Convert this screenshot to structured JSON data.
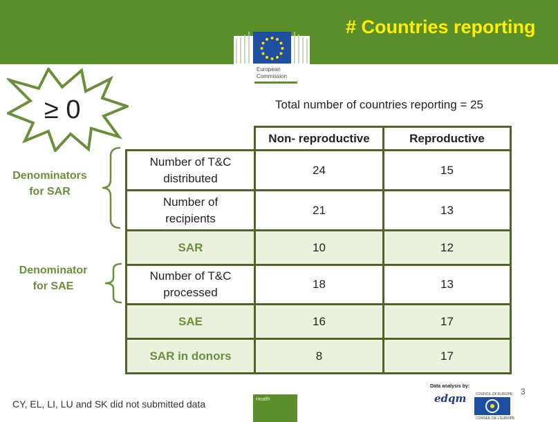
{
  "header": {
    "title": "# Countries reporting",
    "logo_text_line1": "European",
    "logo_text_line2": "Commission"
  },
  "badge": {
    "label": "≥ 0"
  },
  "total": "Total number of countries reporting = 25",
  "side_labels": [
    {
      "line1": "Denominators",
      "line2": "for SAR"
    },
    {
      "line1": "Denominator",
      "line2": "for SAE"
    }
  ],
  "table": {
    "headers": [
      "Non- reproductive",
      "Reproductive"
    ],
    "rows": [
      {
        "label_line1": "Number of T&C",
        "label_line2": "distributed",
        "non_reproductive": "24",
        "reproductive": "15",
        "shaded": false
      },
      {
        "label_line1": "Number of",
        "label_line2": "recipients",
        "non_reproductive": "21",
        "reproductive": "13",
        "shaded": false
      },
      {
        "label_line1": "SAR",
        "label_line2": "",
        "non_reproductive": "10",
        "reproductive": "12",
        "shaded": true
      },
      {
        "label_line1": "Number of T&C",
        "label_line2": "processed",
        "non_reproductive": "18",
        "reproductive": "13",
        "shaded": false
      },
      {
        "label_line1": "SAE",
        "label_line2": "",
        "non_reproductive": "16",
        "reproductive": "17",
        "shaded": true
      },
      {
        "label_line1": "SAR in donors",
        "label_line2": "",
        "non_reproductive": "8",
        "reproductive": "17",
        "shaded": true
      }
    ]
  },
  "footer": {
    "note": "CY, EL, LI, LU and SK did not submitted data",
    "health_label": "Health",
    "credit": "Data analysis by:",
    "edqm_logo": "edqm",
    "coe_top": "COUNCIL OF EUROPE",
    "coe_bottom": "CONSEIL DE L'EUROPE",
    "page_number": "3"
  },
  "colors": {
    "header_green": "#5b8f2c",
    "title_yellow": "#ffee00",
    "table_border": "#4f6228",
    "shaded_row": "#eaf1dd",
    "label_green": "#6a8f3a",
    "eu_blue": "#1f4fa0",
    "eu_star": "#ffdd00"
  }
}
